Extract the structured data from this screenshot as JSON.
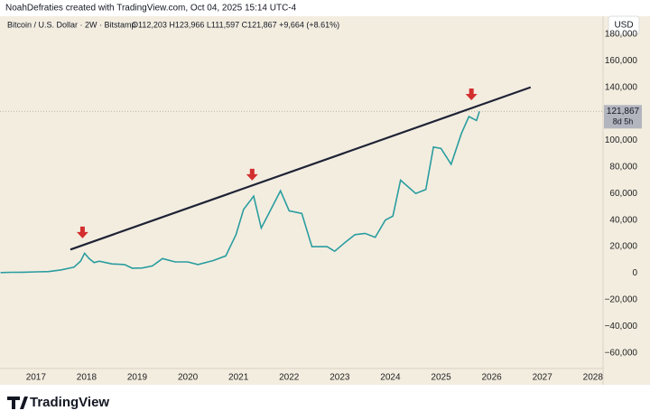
{
  "header": "NoahDefraties created with TradingView.com, Oct 04, 2025 15:14 UTC-4",
  "legend": "Bitcoin / U.S. Dollar · 2W · Bitstamp",
  "ohlc": "O112,203 H123,966 L111,597 C121,867 +9,664 (+8.61%)",
  "currency_button": "USD",
  "countdown": "8d 5h",
  "brand": "TradingView",
  "chart_data": {
    "type": "line",
    "series": [
      {
        "name": "Bitcoin / U.S. Dollar",
        "color": "#2a9d9f",
        "x": [
          2016.3,
          2016.5,
          2016.75,
          2017.0,
          2017.25,
          2017.5,
          2017.75,
          2017.88,
          2017.96,
          2018.05,
          2018.15,
          2018.25,
          2018.5,
          2018.75,
          2018.9,
          2019.1,
          2019.3,
          2019.5,
          2019.75,
          2020.0,
          2020.2,
          2020.5,
          2020.75,
          2020.95,
          2021.1,
          2021.3,
          2021.45,
          2021.6,
          2021.83,
          2022.0,
          2022.25,
          2022.45,
          2022.75,
          2022.9,
          2023.1,
          2023.3,
          2023.5,
          2023.7,
          2023.9,
          2024.05,
          2024.2,
          2024.5,
          2024.7,
          2024.85,
          2025.0,
          2025.2,
          2025.4,
          2025.55,
          2025.7,
          2025.76
        ],
        "values": [
          450,
          650,
          700,
          1000,
          1200,
          2500,
          4500,
          9000,
          15000,
          11000,
          8000,
          9000,
          7000,
          6500,
          3800,
          3900,
          5500,
          11000,
          8500,
          8500,
          6500,
          9500,
          13000,
          29000,
          48000,
          58000,
          34000,
          45000,
          62000,
          47000,
          45000,
          20000,
          20000,
          16500,
          23000,
          29000,
          30000,
          27000,
          40000,
          43000,
          70000,
          60000,
          63000,
          95000,
          94000,
          82000,
          105000,
          118000,
          115000,
          121867
        ]
      }
    ],
    "trendline": {
      "x": [
        2017.68,
        2026.77
      ],
      "y": [
        17800,
        140000
      ],
      "color": "#1e2235"
    },
    "markers": {
      "x": [
        2017.92,
        2021.27,
        2025.6
      ],
      "y": [
        31000,
        74500,
        135000
      ],
      "color": "#d32f2f"
    },
    "last_price": {
      "value": 121867,
      "label": "121,867"
    },
    "xlim": [
      2016.29,
      2028.2
    ],
    "xticks": [
      2017,
      2018,
      2019,
      2020,
      2021,
      2022,
      2023,
      2024,
      2025,
      2026,
      2027,
      2028
    ],
    "ylim": [
      -71800,
      193500
    ],
    "yticks": [
      {
        "value": -60000,
        "label": "−60,000"
      },
      {
        "value": -40000,
        "label": "−40,000"
      },
      {
        "value": -20000,
        "label": "−20,000"
      },
      0,
      {
        "value": 20000,
        "label": "20,000"
      },
      {
        "value": 40000,
        "label": "40,000"
      },
      {
        "value": 60000,
        "label": "60,000"
      },
      {
        "value": 80000,
        "label": "80,000"
      },
      {
        "value": 100000,
        "label": "100,000"
      },
      {
        "value": 120000,
        "label": "120,000"
      },
      {
        "value": 140000,
        "label": "140,000"
      },
      {
        "value": 160000,
        "label": "160,000"
      },
      {
        "value": 180000,
        "label": "180,000"
      }
    ]
  }
}
